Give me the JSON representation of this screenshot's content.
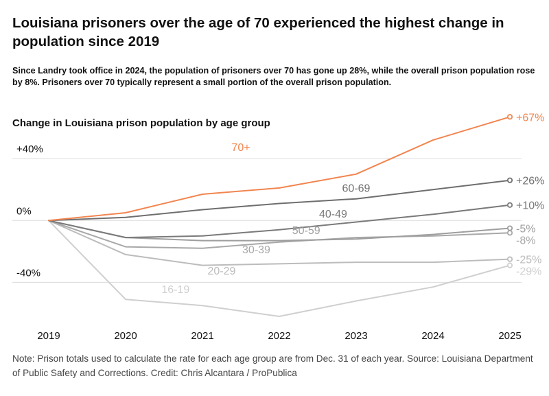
{
  "header": {
    "title": "Louisiana prisoners over the age of 70 experienced the highest change in population since 2019",
    "subtitle": "Since Landry took office in 2024, the population of prisoners over 70 has gone up 28%, while the overall prison population rose by 8%. Prisoners over 70 typically represent a small portion of the overall prison population."
  },
  "footer": {
    "note": "Note: Prison totals used to calculate the rate for each age group are from Dec. 31 of each year. Source: Louisiana Department of Public Safety and Corrections. Credit: Chris Alcantara / ProPublica"
  },
  "chart_data": {
    "type": "line",
    "title": "Change in Louisiana prison population by age group",
    "x": [
      "2019",
      "2020",
      "2021",
      "2022",
      "2023",
      "2024",
      "2025"
    ],
    "y_ticks": [
      {
        "value": 40,
        "label": "+40%"
      },
      {
        "value": 0,
        "label": "0%"
      },
      {
        "value": -40,
        "label": "-40%"
      }
    ],
    "ylim": [
      -62,
      76
    ],
    "series": [
      {
        "name": "70+",
        "color": "#f2854f",
        "values": [
          0,
          5,
          17,
          21,
          30,
          52,
          67
        ],
        "end_label": "+67%",
        "label_pos": [
          2.5,
          45
        ]
      },
      {
        "name": "60-69",
        "color": "#6e6e6e",
        "values": [
          0,
          2,
          7,
          11,
          14,
          20,
          26
        ],
        "end_label": "+26%",
        "label_pos": [
          4.0,
          18.5
        ]
      },
      {
        "name": "40-49",
        "color": "#7a7a7a",
        "values": [
          0,
          -11,
          -10,
          -6,
          -1,
          4,
          10
        ],
        "end_label": "+10%",
        "label_pos": [
          3.7,
          1.8
        ]
      },
      {
        "name": "50-59",
        "color": "#9e9e9e",
        "values": [
          0,
          -11,
          -13,
          -13,
          -12,
          -9,
          -5
        ],
        "end_label": "-5%",
        "label_pos": [
          3.35,
          -8.8
        ]
      },
      {
        "name": "30-39",
        "color": "#a8a8a8",
        "values": [
          0,
          -17,
          -18,
          -14,
          -11,
          -10,
          -8
        ],
        "end_label": "-8%",
        "label_pos": [
          2.7,
          -21.2
        ]
      },
      {
        "name": "20-29",
        "color": "#bcbcbc",
        "values": [
          0,
          -22,
          -29,
          -28,
          -27,
          -27,
          -25
        ],
        "end_label": "-25%",
        "label_pos": [
          2.25,
          -35
        ]
      },
      {
        "name": "16-19",
        "color": "#cfcfcf",
        "values": [
          0,
          -51,
          -55,
          -62,
          -52,
          -43,
          -29
        ],
        "end_label": "-29%",
        "label_pos": [
          1.65,
          -47
        ]
      }
    ]
  }
}
